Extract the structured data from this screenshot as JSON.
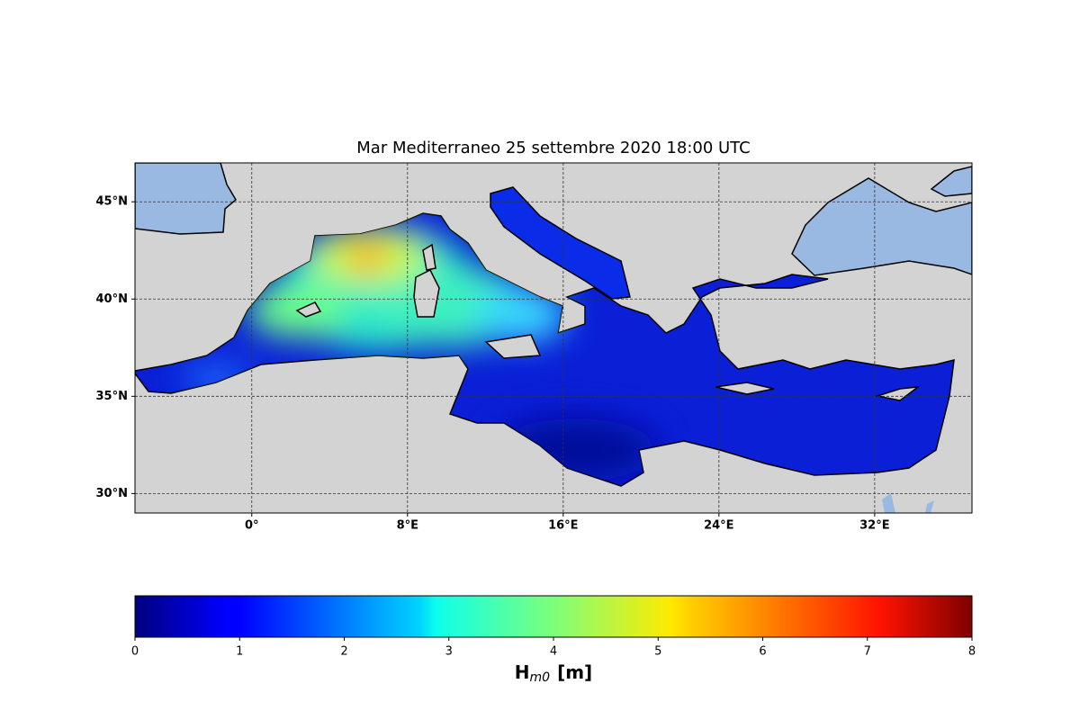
{
  "map": {
    "title": "Mar Mediterraneo 25 settembre 2020  18:00 UTC",
    "xlim": [
      -6,
      37
    ],
    "ylim": [
      29,
      47
    ],
    "xticks": [
      {
        "value": 0,
        "label": "0°"
      },
      {
        "value": 8,
        "label": "8°E"
      },
      {
        "value": 16,
        "label": "16°E"
      },
      {
        "value": 24,
        "label": "24°E"
      },
      {
        "value": 32,
        "label": "32°E"
      }
    ],
    "yticks": [
      {
        "value": 30,
        "label": "30°N"
      },
      {
        "value": 35,
        "label": "35°N"
      },
      {
        "value": 40,
        "label": "40°N"
      },
      {
        "value": 45,
        "label": "45°N"
      }
    ],
    "grid": true
  },
  "colorbar": {
    "lim": [
      0,
      8
    ],
    "ticks": [
      0,
      1,
      2,
      3,
      4,
      5,
      6,
      7,
      8
    ],
    "label": {
      "base": "H",
      "sub": "m0",
      "unit": "[m]"
    }
  }
}
